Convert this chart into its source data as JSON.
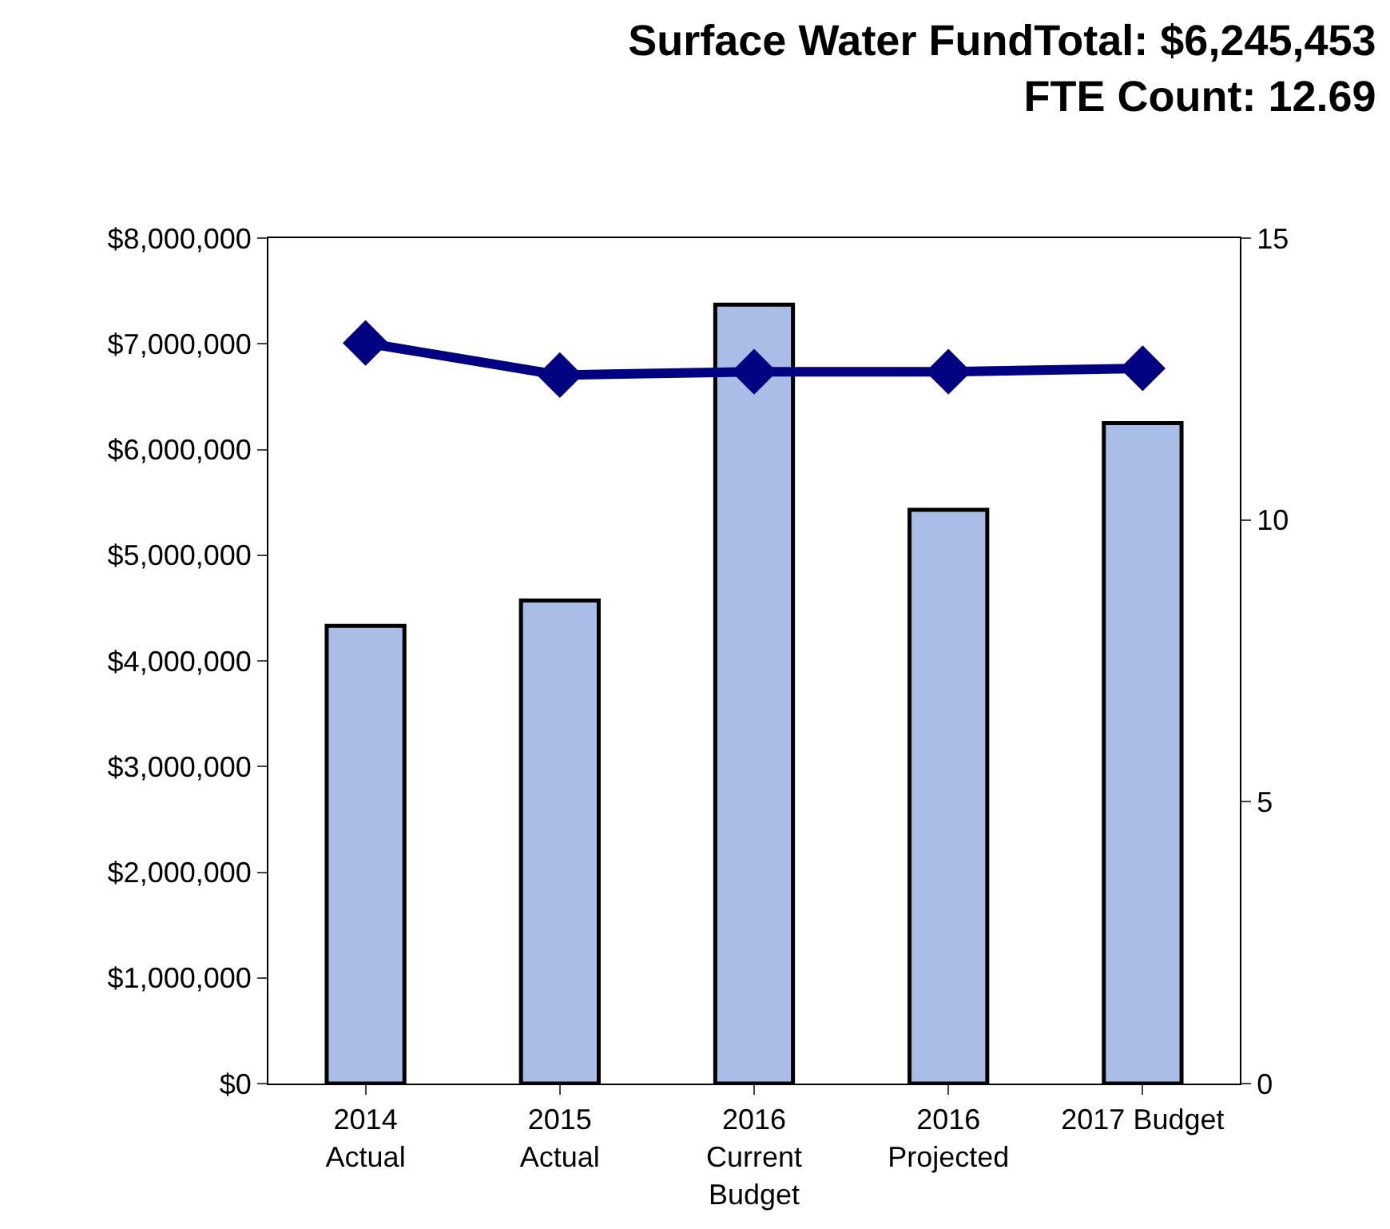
{
  "chart_data": {
    "type": "bar",
    "title": "Surface Water FundTotal: $6,245,453",
    "subtitle": "FTE Count: 12.69",
    "categories": [
      "2014\nActual",
      "2015\nActual",
      "2016\nCurrent\nBudget",
      "2016\nProjected",
      "2017 Budget"
    ],
    "series": [
      {
        "color": "#a9bde6",
        "values": [
          4330000,
          4570000,
          7370000,
          5430000,
          6250000
        ]
      },
      {
        "type": "line",
        "axis": "y2",
        "color": "#000080",
        "marker": "diamond",
        "line_style": "solid",
        "values": [
          13.14,
          12.57,
          12.63,
          12.63,
          12.69
        ]
      }
    ],
    "ylim": [
      0,
      8000000
    ],
    "yticks": [
      {
        "value": 0,
        "label": "$0"
      },
      {
        "value": 1000000,
        "label": "$1,000,000"
      },
      {
        "value": 2000000,
        "label": "$2,000,000"
      },
      {
        "value": 3000000,
        "label": "$3,000,000"
      },
      {
        "value": 4000000,
        "label": "$4,000,000"
      },
      {
        "value": 5000000,
        "label": "$5,000,000"
      },
      {
        "value": 6000000,
        "label": "$6,000,000"
      },
      {
        "value": 7000000,
        "label": "$7,000,000"
      },
      {
        "value": 8000000,
        "label": "$8,000,000"
      }
    ],
    "y2lim": [
      0,
      15
    ],
    "y2ticks": [
      0,
      5,
      10,
      15
    ]
  }
}
